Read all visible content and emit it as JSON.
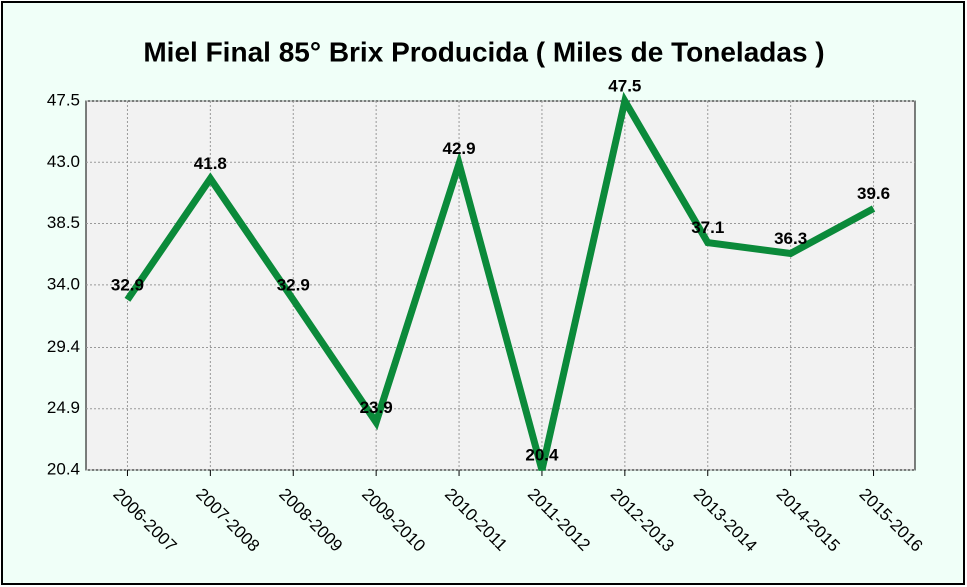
{
  "chart_data": {
    "type": "line",
    "title": "Miel Final 85° Brix Producida ( Miles de Toneladas )",
    "categories": [
      "2006-2007",
      "2007-2008",
      "2008-2009",
      "2009-2010",
      "2010-2011",
      "2011-2012",
      "2012-2013",
      "2013-2014",
      "2014-2015",
      "2015-2016"
    ],
    "values": [
      32.9,
      41.8,
      32.9,
      23.9,
      42.9,
      20.4,
      47.5,
      37.1,
      36.3,
      39.6
    ],
    "color": "#0b8a3a",
    "ylim": [
      20.4,
      47.5
    ],
    "yticks": [
      20.4,
      24.9,
      29.4,
      {
        "value": 34,
        "label": "34.0"
      },
      38.5,
      {
        "value": 43,
        "label": "43.0"
      },
      47.5
    ],
    "grid": true
  }
}
